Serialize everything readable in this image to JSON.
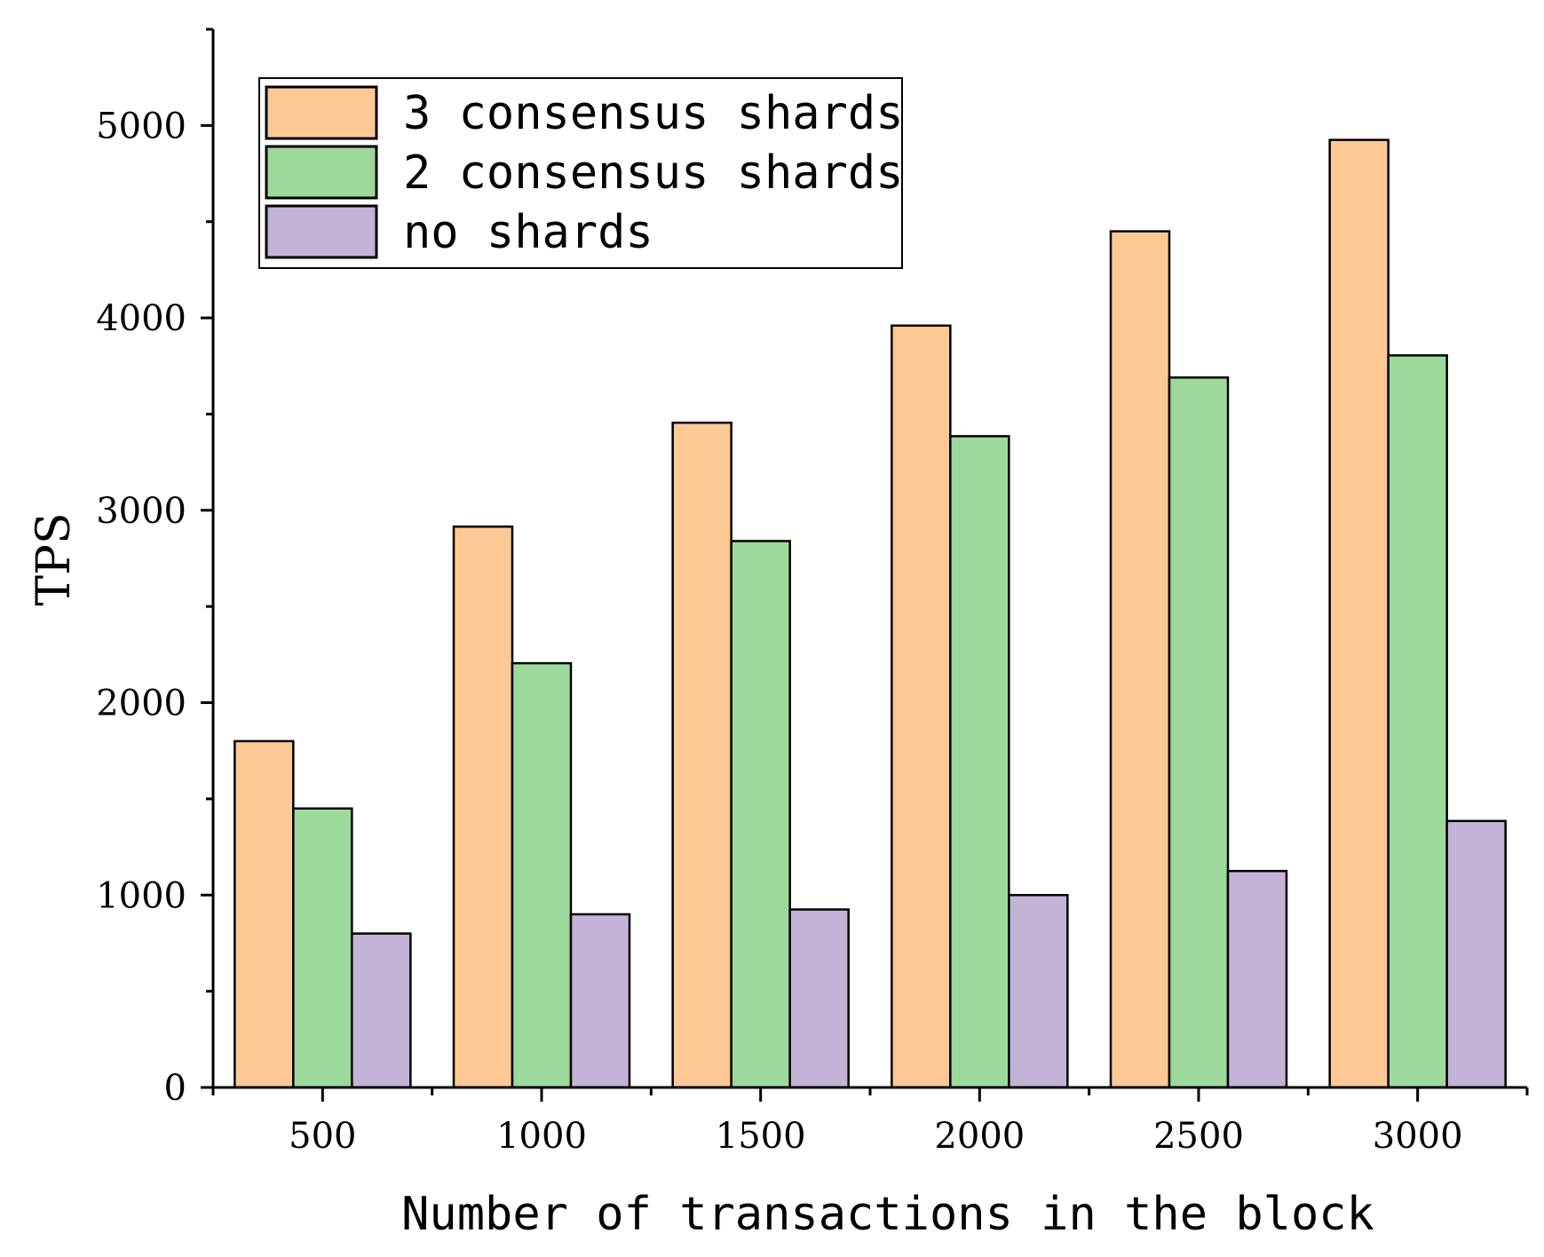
{
  "chart_data": {
    "type": "bar",
    "title": "",
    "xlabel": "Number of transactions in the block",
    "ylabel": "TPS",
    "categories": [
      "500",
      "1000",
      "1500",
      "2000",
      "2500",
      "3000"
    ],
    "series": [
      {
        "name": "3 consensus shards",
        "color": "#FDC894",
        "values": [
          1800,
          2915,
          3455,
          3960,
          4450,
          4925
        ]
      },
      {
        "name": "2 consensus shards",
        "color": "#9ED99C",
        "values": [
          1450,
          2205,
          2840,
          3385,
          3690,
          3805
        ]
      },
      {
        "name": "no shards",
        "color": "#C3B3D6",
        "values": [
          800,
          900,
          925,
          1000,
          1125,
          1385
        ]
      }
    ],
    "ylim": [
      0,
      5500
    ],
    "yticks": [
      0,
      1000,
      2000,
      3000,
      4000,
      5000
    ],
    "ytick_labels": [
      "0",
      "1000",
      "2000",
      "3000",
      "4000",
      "5000"
    ],
    "legend_position": "top-left",
    "grid": false
  }
}
